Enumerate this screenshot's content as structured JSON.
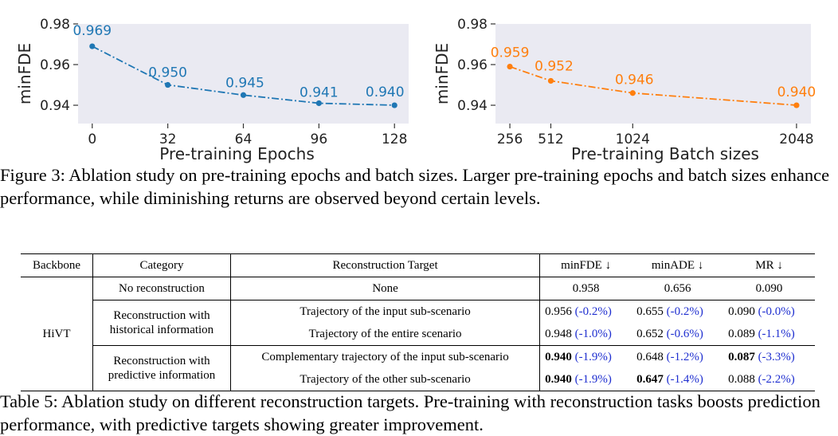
{
  "chart_data": [
    {
      "type": "line",
      "x": [
        0,
        32,
        64,
        96,
        128
      ],
      "y": [
        0.969,
        0.95,
        0.945,
        0.941,
        0.94
      ],
      "point_labels": [
        "0.969",
        "0.950",
        "0.945",
        "0.941",
        "0.940"
      ],
      "xticks": [
        "0",
        "32",
        "64",
        "96",
        "128"
      ],
      "yticks": [
        "0.94",
        "0.96",
        "0.98"
      ],
      "xlabel": "Pre-training Epochs",
      "ylabel": "minFDE",
      "xlim": [
        -6,
        134
      ],
      "ylim": [
        0.931,
        0.98
      ],
      "color": "#1f77b4",
      "grid": false
    },
    {
      "type": "line",
      "x": [
        256,
        512,
        1024,
        2048
      ],
      "y": [
        0.959,
        0.952,
        0.946,
        0.94
      ],
      "point_labels": [
        "0.959",
        "0.952",
        "0.946",
        "0.940"
      ],
      "xticks": [
        "256",
        "512",
        "1024",
        "2048"
      ],
      "yticks": [
        "0.94",
        "0.96",
        "0.98"
      ],
      "xlabel": "Pre-training Batch sizes",
      "ylabel": "minFDE",
      "xlim": [
        166,
        2138
      ],
      "ylim": [
        0.931,
        0.98
      ],
      "color": "#ff7f0e",
      "grid": false
    }
  ],
  "figure_caption": "Figure 3:  Ablation study on pre-training epochs and batch sizes.  Larger pre-training epochs and batch sizes enhance performance, while diminishing returns are observed beyond certain levels.",
  "table": {
    "headers": {
      "backbone": "Backbone",
      "category": "Category",
      "target": "Reconstruction Target",
      "minfde": "minFDE ↓",
      "minade": "minADE ↓",
      "mr": "MR ↓"
    },
    "backbone": "HiVT",
    "rows": [
      {
        "category": "No reconstruction",
        "target": "None",
        "minfde": "0.958",
        "minfde_delta": "",
        "minade": "0.656",
        "minade_delta": "",
        "mr": "0.090",
        "mr_delta": ""
      },
      {
        "category": "Reconstruction with historical information",
        "target": "Trajectory of the input sub-scenario",
        "minfde": "0.956",
        "minfde_delta": "(-0.2%)",
        "minade": "0.655",
        "minade_delta": "(-0.2%)",
        "mr": "0.090",
        "mr_delta": "(-0.0%)"
      },
      {
        "category": "",
        "target": "Trajectory of the entire scenario",
        "minfde": "0.948",
        "minfde_delta": "(-1.0%)",
        "minade": "0.652",
        "minade_delta": "(-0.6%)",
        "mr": "0.089",
        "mr_delta": "(-1.1%)"
      },
      {
        "category": "Reconstruction with predictive information",
        "target": "Complementary trajectory of the input sub-scenario",
        "minfde": "0.940",
        "minfde_delta": "(-1.9%)",
        "minade": "0.648",
        "minade_delta": "(-1.2%)",
        "mr": "0.087",
        "mr_delta": "(-3.3%)"
      },
      {
        "category": "",
        "target": "Trajectory of the other sub-scenario",
        "minfde": "0.940",
        "minfde_delta": "(-1.9%)",
        "minade": "0.647",
        "minade_delta": "(-1.4%)",
        "mr": "0.088",
        "mr_delta": "(-2.2%)"
      }
    ]
  },
  "table_caption": "Table 5:  Ablation study on different reconstruction targets.  Pre-training with reconstruction tasks boosts prediction performance, with predictive targets showing greater improvement."
}
